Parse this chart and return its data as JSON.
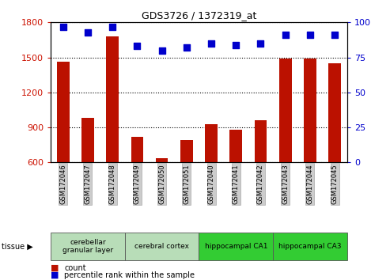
{
  "title": "GDS3726 / 1372319_at",
  "samples": [
    "GSM172046",
    "GSM172047",
    "GSM172048",
    "GSM172049",
    "GSM172050",
    "GSM172051",
    "GSM172040",
    "GSM172041",
    "GSM172042",
    "GSM172043",
    "GSM172044",
    "GSM172045"
  ],
  "counts": [
    1460,
    980,
    1680,
    820,
    635,
    790,
    930,
    880,
    960,
    1490,
    1490,
    1450
  ],
  "percentiles": [
    97,
    93,
    97,
    83,
    80,
    82,
    85,
    84,
    85,
    91,
    91,
    91
  ],
  "ylim_left": [
    600,
    1800
  ],
  "ylim_right": [
    0,
    100
  ],
  "yticks_left": [
    600,
    900,
    1200,
    1500,
    1800
  ],
  "yticks_right": [
    0,
    25,
    50,
    75,
    100
  ],
  "bar_color": "#BB1100",
  "dot_color": "#0000CC",
  "tissue_groups": [
    {
      "label": "cerebellar\ngranular layer",
      "start": 0,
      "end": 3,
      "color": "#b8ddb8"
    },
    {
      "label": "cerebral cortex",
      "start": 3,
      "end": 6,
      "color": "#b8ddb8"
    },
    {
      "label": "hippocampal CA1",
      "start": 6,
      "end": 9,
      "color": "#33cc33"
    },
    {
      "label": "hippocampal CA3",
      "start": 9,
      "end": 12,
      "color": "#33cc33"
    }
  ],
  "ylabel_left_color": "#CC1100",
  "ylabel_right_color": "#0000CC",
  "tick_label_bg": "#cccccc",
  "legend_items": [
    {
      "color": "#BB1100",
      "label": "count"
    },
    {
      "color": "#0000CC",
      "label": "percentile rank within the sample"
    }
  ],
  "tissue_arrow_text": "tissue ▶",
  "bar_width": 0.5,
  "dot_size": 40,
  "background_color": "#ffffff",
  "spine_color": "#000000",
  "fig_width": 4.93,
  "fig_height": 3.54,
  "dpi": 100
}
